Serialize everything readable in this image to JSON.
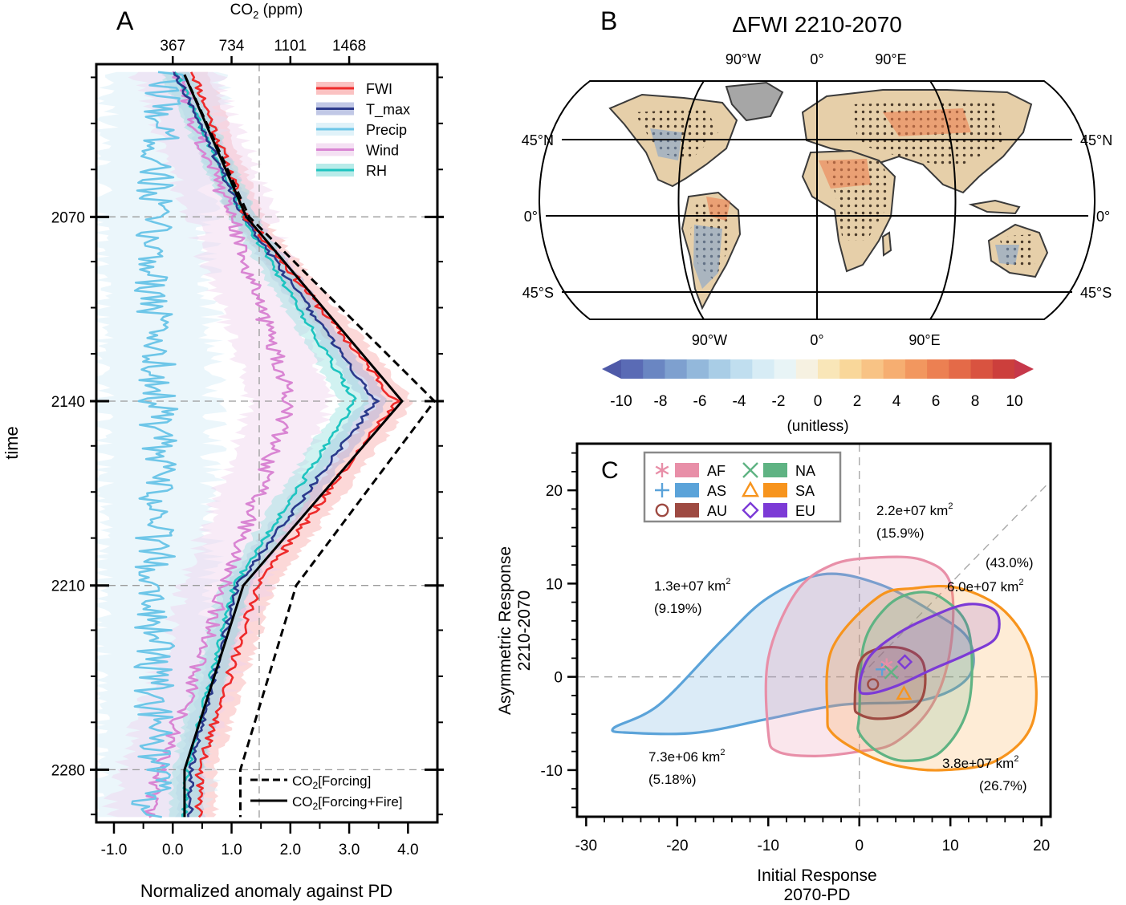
{
  "chart_data": [
    {
      "panel": "A",
      "type": "line",
      "panel_label": "A",
      "xlabel": "Normalized anomaly against PD",
      "ylabel": "time",
      "top_axis_label": "CO",
      "top_axis_label_sub": "2",
      "top_axis_label_unit": " (ppm)",
      "top_ticks": [
        367,
        734,
        1101,
        1468
      ],
      "top_tick_labels": [
        "367",
        "734",
        "1101",
        "1468"
      ],
      "xlim": [
        -1.3,
        4.5
      ],
      "ylim": [
        2012,
        2300
      ],
      "x_ticks": [
        -1.0,
        0.0,
        1.0,
        2.0,
        3.0,
        4.0
      ],
      "x_tick_labels": [
        "-1.0",
        "0.0",
        "1.0",
        "2.0",
        "3.0",
        "4.0"
      ],
      "y_ticks": [
        2070,
        2140,
        2210,
        2280
      ],
      "y_tick_labels": [
        "2070",
        "2140",
        "2210",
        "2280"
      ],
      "x_ref_line": 1.47,
      "legend": [
        "FWI",
        "T_max",
        "Precip",
        "Wind",
        "RH"
      ],
      "legend2": [
        {
          "label": "CO",
          "sub": "2",
          "rest": "[Forcing]",
          "style": "dashed"
        },
        {
          "label": "CO",
          "sub": "2",
          "rest": "[Forcing+Fire]",
          "style": "solid"
        }
      ],
      "series": [
        {
          "name": "FWI",
          "color": "#ee2b2b",
          "band": "#f9a8a8",
          "y": [
            2015,
            2070,
            2140,
            2210,
            2280,
            2298
          ],
          "x": [
            0.35,
            1.25,
            3.8,
            1.45,
            0.45,
            0.45
          ]
        },
        {
          "name": "T_max",
          "color": "#2b3a8c",
          "band": "#a7b0dc",
          "y": [
            2015,
            2070,
            2140,
            2210,
            2280,
            2298
          ],
          "x": [
            0.05,
            1.2,
            3.45,
            1.1,
            0.3,
            0.3
          ]
        },
        {
          "name": "Precip",
          "color": "#6ec6e8",
          "band": "#d3ecf7",
          "y": [
            2015,
            2070,
            2140,
            2210,
            2280,
            2298
          ],
          "x": [
            -0.1,
            -0.35,
            -0.25,
            -0.3,
            -0.35,
            -0.4
          ]
        },
        {
          "name": "Wind",
          "color": "#d985d3",
          "band": "#f0d3ee",
          "y": [
            2015,
            2070,
            2140,
            2210,
            2280,
            2298
          ],
          "x": [
            0.05,
            1.0,
            2.0,
            0.9,
            -0.2,
            -0.4
          ]
        },
        {
          "name": "RH",
          "color": "#1ec4c0",
          "band": "#9ae3e0",
          "y": [
            2015,
            2070,
            2140,
            2210,
            2280,
            2298
          ],
          "x": [
            0.05,
            1.2,
            3.1,
            1.05,
            0.25,
            0.2
          ]
        },
        {
          "name": "CO2 [Forcing]",
          "color": "#000000",
          "style": "dashed",
          "y": [
            2016,
            2070,
            2140,
            2210,
            2280,
            2298
          ],
          "x": [
            0.2,
            1.3,
            4.45,
            2.1,
            1.15,
            1.15
          ]
        },
        {
          "name": "CO2 [Forcing+Fire]",
          "color": "#000000",
          "style": "solid",
          "y": [
            2016,
            2070,
            2140,
            2210,
            2280,
            2298
          ],
          "x": [
            0.2,
            1.25,
            3.9,
            1.2,
            0.2,
            0.2
          ]
        }
      ]
    },
    {
      "panel": "B",
      "type": "heatmap",
      "panel_label": "B",
      "title": "ΔFWI 2210-2070",
      "lon_top": [
        "90°W",
        "0°",
        "90°E"
      ],
      "lon_bottom": [
        "90°W",
        "0°",
        "90°E"
      ],
      "lat_left": [
        "45°N",
        "0°",
        "45°S"
      ],
      "lat_right": [
        "45°N",
        "0°",
        "45°S"
      ],
      "colorbar_ticks": [
        -10,
        -8,
        -6,
        -4,
        -2,
        0,
        2,
        4,
        6,
        8,
        10
      ],
      "colorbar_tick_labels": [
        "-10",
        "-8",
        "-6",
        "-4",
        "-2",
        "0",
        "2",
        "4",
        "6",
        "8",
        "10"
      ],
      "colorbar_label": "(unitless)",
      "colorbar_colors": [
        "#5a6bb5",
        "#6a86c2",
        "#7ea0cf",
        "#93b8db",
        "#a9cde6",
        "#c0deef",
        "#d7ecf5",
        "#e8f4f6",
        "#f6f1e1",
        "#f9e6b8",
        "#f9d79a",
        "#f8c385",
        "#f6ae71",
        "#f2975f",
        "#ec8052",
        "#e46a48",
        "#d95340",
        "#cc3f3c"
      ],
      "colorbar_low": "#4f5aa8",
      "colorbar_high": "#c6384a",
      "land_color": "#e6cfa9",
      "stipple_color": "#4a3a2a",
      "no_data_color": "#a6a6a6"
    },
    {
      "panel": "C",
      "type": "scatter",
      "panel_label": "C",
      "xlabel": "Initial Response",
      "xlabel2": "2070-PD",
      "ylabel": "Asymmetric Response",
      "ylabel2": "2210-2070",
      "xlim": [
        -31,
        21
      ],
      "ylim": [
        -15,
        25
      ],
      "x_ticks": [
        -30,
        -20,
        -10,
        0,
        10,
        20
      ],
      "x_tick_labels": [
        "-30",
        "-20",
        "-10",
        "0",
        "10",
        "20"
      ],
      "y_ticks": [
        -10,
        0,
        10,
        20
      ],
      "y_tick_labels": [
        "-10",
        "0",
        "10",
        "20"
      ],
      "legend": [
        {
          "name": "AF",
          "color": "#e88fa8",
          "marker": "asterisk"
        },
        {
          "name": "AS",
          "color": "#5ba3d9",
          "marker": "plus"
        },
        {
          "name": "AU",
          "color": "#9e4a42",
          "marker": "circle"
        },
        {
          "name": "NA",
          "color": "#5fb383",
          "marker": "cross"
        },
        {
          "name": "SA",
          "color": "#f7941d",
          "marker": "triangle"
        },
        {
          "name": "EU",
          "color": "#7c3ad6",
          "marker": "diamond"
        }
      ],
      "regions": [
        {
          "name": "AS",
          "color": "#5ba3d9",
          "fill": "rgba(91,163,217,0.22)",
          "center": [
            2.5,
            0.8
          ],
          "outline": [
            [
              -27,
              -5.5
            ],
            [
              -22,
              -3
            ],
            [
              -15,
              4
            ],
            [
              -10,
              8.5
            ],
            [
              -4,
              11
            ],
            [
              2,
              10
            ],
            [
              8,
              7
            ],
            [
              12,
              4
            ],
            [
              12,
              0
            ],
            [
              7,
              -2.5
            ],
            [
              -2,
              -3
            ],
            [
              -10,
              -4.5
            ],
            [
              -18,
              -6
            ],
            [
              -25,
              -6
            ]
          ]
        },
        {
          "name": "AF",
          "color": "#e88fa8",
          "fill": "rgba(232,143,168,0.22)",
          "center": [
            3.0,
            1.3
          ],
          "outline": [
            [
              -10,
              -6
            ],
            [
              -10,
              2
            ],
            [
              -7,
              9
            ],
            [
              -3,
              12
            ],
            [
              2,
              12.8
            ],
            [
              7,
              12.5
            ],
            [
              10,
              10
            ],
            [
              10,
              3
            ],
            [
              8,
              -3
            ],
            [
              4,
              -7
            ],
            [
              0,
              -8
            ],
            [
              -5,
              -8.5
            ],
            [
              -9,
              -8
            ]
          ]
        },
        {
          "name": "SA",
          "color": "#f7941d",
          "fill": "rgba(247,148,29,0.18)",
          "center": [
            4.9,
            -1.8
          ],
          "outline": [
            [
              -3.5,
              -4
            ],
            [
              -3,
              3
            ],
            [
              2,
              8.5
            ],
            [
              6,
              9.5
            ],
            [
              11,
              9.5
            ],
            [
              16,
              7
            ],
            [
              19,
              2
            ],
            [
              19,
              -5
            ],
            [
              15,
              -9
            ],
            [
              9,
              -10
            ],
            [
              4,
              -9.5
            ],
            [
              0,
              -8
            ],
            [
              -3,
              -6
            ]
          ]
        },
        {
          "name": "NA",
          "color": "#5fb383",
          "fill": "rgba(95,179,131,0.18)",
          "center": [
            3.5,
            0.5
          ],
          "outline": [
            [
              0,
              -4
            ],
            [
              0.5,
              3.5
            ],
            [
              3,
              7.5
            ],
            [
              6,
              9
            ],
            [
              9,
              8.5
            ],
            [
              12,
              5
            ],
            [
              12,
              -3
            ],
            [
              9,
              -8
            ],
            [
              5,
              -9
            ],
            [
              2,
              -8
            ],
            [
              0,
              -6
            ]
          ]
        },
        {
          "name": "AU",
          "color": "#9e4a42",
          "fill": "rgba(158,74,66,0.18)",
          "center": [
            1.5,
            -0.8
          ],
          "outline": [
            [
              -0.5,
              -3
            ],
            [
              0,
              1.5
            ],
            [
              2,
              3
            ],
            [
              5,
              3
            ],
            [
              7,
              1.5
            ],
            [
              7,
              -2
            ],
            [
              5,
              -4
            ],
            [
              2,
              -4.5
            ],
            [
              0,
              -4
            ]
          ]
        },
        {
          "name": "EU",
          "color": "#7c3ad6",
          "fill": "rgba(124,58,214,0.16)",
          "center": [
            5.0,
            1.6
          ],
          "outline": [
            [
              0,
              -1.2
            ],
            [
              1,
              2
            ],
            [
              4,
              4.5
            ],
            [
              8,
              6.5
            ],
            [
              12,
              7.8
            ],
            [
              15,
              7
            ],
            [
              15,
              4.2
            ],
            [
              12,
              2.5
            ],
            [
              8,
              0.8
            ],
            [
              4,
              -1
            ],
            [
              1,
              -1.8
            ]
          ]
        }
      ],
      "quadrant_labels": [
        {
          "area": "1.3e+07 km",
          "sup": "2",
          "pct": "(9.19%)"
        },
        {
          "area": "2.2e+07 km",
          "sup": "2",
          "pct": "(15.9%)"
        },
        {
          "area": "6.0e+07 km",
          "sup": "2",
          "pct": "(43.0%)"
        },
        {
          "area": "7.3e+06 km",
          "sup": "2",
          "pct": "(5.18%)"
        },
        {
          "area": "3.8e+07 km",
          "sup": "2",
          "pct": "(26.7%)"
        }
      ]
    }
  ]
}
